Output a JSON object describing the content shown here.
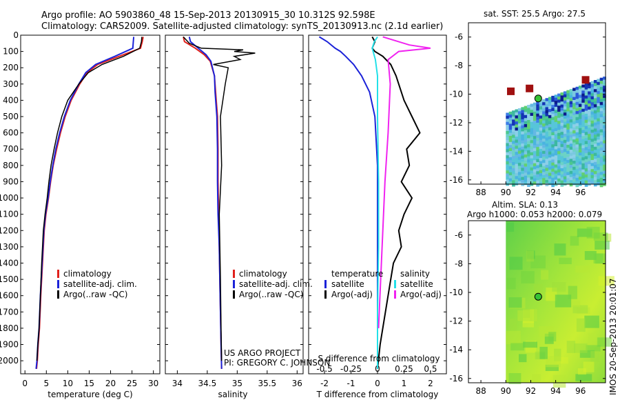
{
  "header": {
    "line1": "Argo profile: AO 5903860_48 15-Sep-2013 20130915_30 10.312S 92.598E",
    "line2": "Climatology: CARS2009. Satellite-adjusted climatology: synTS_20130913.nc (2.1d earlier)"
  },
  "side_label": "IMOS 20-Sep-2013 20:01:07",
  "project": {
    "line1": "US ARGO PROJECT",
    "line2": "PI: GREGORY C. JOHNSON"
  },
  "colors": {
    "climatology": "#e0201c",
    "satellite": "#1b22d8",
    "argo": "#000000",
    "sat_diff": "#22e0e8",
    "argo_sal_diff": "#f022f0"
  },
  "chart_data": [
    {
      "type": "line",
      "xlabel": "temperature (deg C)",
      "xlim": [
        -1,
        31.5
      ],
      "xticks": [
        "0",
        "5",
        "10",
        "15",
        "20",
        "25",
        "30"
      ],
      "ylim": [
        0,
        2080
      ],
      "yticks": [
        "0",
        "100",
        "200",
        "300",
        "400",
        "500",
        "600",
        "700",
        "800",
        "900",
        "1000",
        "1100",
        "1200",
        "1300",
        "1400",
        "1500",
        "1600",
        "1700",
        "1800",
        "1900",
        "2000"
      ],
      "legend": [
        "climatology",
        "satellite-adj. clim.",
        "Argo(..raw -QC)"
      ],
      "series": [
        {
          "name": "climatology",
          "x": [
            27.6,
            27.4,
            27.0,
            22,
            17,
            14.5,
            12.8,
            10.8,
            9.4,
            8.3,
            7.4,
            6.6,
            6.0,
            5.5,
            4.9,
            4.5,
            4.1,
            3.7,
            3.4,
            3.1,
            2.9,
            2.7
          ],
          "y": [
            10,
            40,
            80,
            130,
            180,
            230,
            300,
            400,
            500,
            600,
            700,
            800,
            900,
            1000,
            1100,
            1200,
            1400,
            1600,
            1800,
            1900,
            2000,
            2050
          ]
        },
        {
          "name": "satellite-adj. clim.",
          "x": [
            25.4,
            25.3,
            25.2,
            21,
            16.5,
            14.2,
            12.6,
            10.6,
            9.2,
            8.1,
            7.2,
            6.5,
            5.9,
            5.4,
            4.8,
            4.4,
            4.0,
            3.6,
            3.3,
            3.0,
            2.8,
            2.6
          ],
          "y": [
            10,
            40,
            80,
            130,
            180,
            230,
            300,
            400,
            500,
            600,
            700,
            800,
            900,
            1000,
            1100,
            1200,
            1400,
            1600,
            1800,
            1900,
            2000,
            2050
          ]
        },
        {
          "name": "Argo(..raw -QC)",
          "x": [
            27.3,
            27.2,
            26.8,
            23,
            18,
            14.8,
            12.6,
            10.0,
            8.6,
            7.6,
            6.8,
            6.1,
            5.6,
            5.2,
            4.7,
            4.3,
            3.9,
            3.6,
            3.3,
            3.0,
            2.8
          ],
          "y": [
            10,
            40,
            80,
            130,
            180,
            230,
            300,
            400,
            500,
            600,
            700,
            800,
            900,
            1000,
            1100,
            1200,
            1400,
            1600,
            1800,
            1900,
            2000
          ]
        }
      ]
    },
    {
      "type": "line",
      "xlabel": "salinity",
      "xlim": [
        33.8,
        36.1
      ],
      "xticks": [
        "34",
        "34.5",
        "35",
        "35.5",
        "36"
      ],
      "ylim": [
        0,
        2080
      ],
      "legend": [
        "climatology",
        "satellite-adj. clim.",
        "Argo(..raw -QC)"
      ],
      "series": [
        {
          "name": "climatology",
          "x": [
            34.1,
            34.12,
            34.3,
            34.45,
            34.55,
            34.62,
            34.64,
            34.67,
            34.68,
            34.68,
            34.69,
            34.7,
            34.71,
            34.72,
            34.73,
            34.74
          ],
          "y": [
            10,
            40,
            80,
            120,
            160,
            250,
            350,
            500,
            700,
            900,
            1100,
            1300,
            1500,
            1700,
            1900,
            2050
          ]
        },
        {
          "name": "satellite-adj. clim.",
          "x": [
            34.2,
            34.22,
            34.35,
            34.48,
            34.56,
            34.62,
            34.63,
            34.66,
            34.67,
            34.67,
            34.68,
            34.7,
            34.71,
            34.72,
            34.73,
            34.74
          ],
          "y": [
            10,
            40,
            80,
            120,
            160,
            250,
            350,
            500,
            700,
            900,
            1100,
            1300,
            1500,
            1700,
            1900,
            2050
          ]
        },
        {
          "name": "Argo(..raw -QC)",
          "x": [
            34.1,
            34.2,
            34.4,
            35.1,
            34.95,
            35.3,
            34.95,
            35.05,
            34.6,
            34.85,
            34.8,
            34.72,
            34.74,
            34.7,
            34.72,
            34.73,
            34.74
          ],
          "y": [
            10,
            50,
            80,
            90,
            100,
            110,
            130,
            150,
            180,
            200,
            300,
            500,
            800,
            1100,
            1500,
            1800,
            2000
          ]
        }
      ]
    },
    {
      "type": "line",
      "xlabel": "T difference from climatology",
      "xlabel_top": "S difference from climatology",
      "xlim": [
        -2.6,
        2.6
      ],
      "xticks": [
        "-2",
        "-1",
        "0",
        "1",
        "2"
      ],
      "xticks_top": [
        "-0.5",
        "-0.25",
        "0",
        "0.25",
        "0.5"
      ],
      "ylim": [
        0,
        2080
      ],
      "legend": {
        "col1": [
          "temperature",
          "satellite",
          "Argo(-adj)"
        ],
        "col2": [
          "salinity",
          "satellite",
          "Argo(-adj)"
        ]
      },
      "series": [
        {
          "name": "temperature satellite",
          "x": [
            -2.2,
            -1.9,
            -1.6,
            -1.4,
            -1.2,
            -0.9,
            -0.6,
            -0.3,
            -0.1,
            0.0,
            0.0,
            0.0,
            0.0
          ],
          "y": [
            10,
            40,
            80,
            100,
            130,
            180,
            250,
            350,
            500,
            800,
            1200,
            1600,
            2050
          ]
        },
        {
          "name": "temperature Argo(-adj)",
          "x": [
            -0.2,
            -0.1,
            -0.2,
            -0.1,
            0.2,
            0.5,
            0.7,
            1.0,
            1.3,
            1.6,
            1.1,
            1.2,
            0.9,
            1.3,
            1.0,
            0.8,
            0.9,
            0.6,
            0.5,
            0.3,
            0.1,
            0.0
          ],
          "y": [
            10,
            40,
            80,
            100,
            130,
            180,
            250,
            400,
            500,
            600,
            700,
            800,
            900,
            1000,
            1100,
            1200,
            1300,
            1400,
            1500,
            1700,
            1900,
            2050
          ]
        },
        {
          "name": "salinity satellite",
          "x": [
            0.0,
            -0.03,
            -0.05,
            -0.02,
            0.0,
            0.0,
            0.01,
            0.01,
            0.0,
            0.0
          ],
          "y": [
            10,
            40,
            80,
            150,
            250,
            500,
            900,
            1300,
            1700,
            2050
          ]
        },
        {
          "name": "salinity Argo(-adj)",
          "x": [
            0.05,
            0.3,
            0.5,
            0.2,
            0.1,
            0.12,
            0.1,
            0.07,
            0.05,
            0.03,
            0.01
          ],
          "y": [
            10,
            60,
            80,
            100,
            150,
            300,
            600,
            900,
            1200,
            1500,
            1800
          ]
        }
      ]
    },
    {
      "type": "heatmap",
      "title": "sat. SST: 25.5 Argo: 27.5",
      "xlim": [
        87,
        98
      ],
      "ylim": [
        -16.3,
        -5
      ],
      "xticks": [
        "88",
        "90",
        "92",
        "94",
        "96"
      ],
      "yticks": [
        "-6",
        "-8",
        "-10",
        "-12",
        "-14",
        "-16"
      ],
      "argo_position": [
        92.6,
        -10.3
      ]
    },
    {
      "type": "heatmap",
      "title": "Altim. SLA: 0.13",
      "subtitle": "Argo h1000: 0.053 h2000: 0.079",
      "xlim": [
        87,
        98
      ],
      "ylim": [
        -16.3,
        -5
      ],
      "xticks": [
        "88",
        "90",
        "92",
        "94",
        "96"
      ],
      "yticks": [
        "-6",
        "-8",
        "-10",
        "-12",
        "-14",
        "-16"
      ],
      "argo_position": [
        92.6,
        -10.3
      ]
    }
  ]
}
